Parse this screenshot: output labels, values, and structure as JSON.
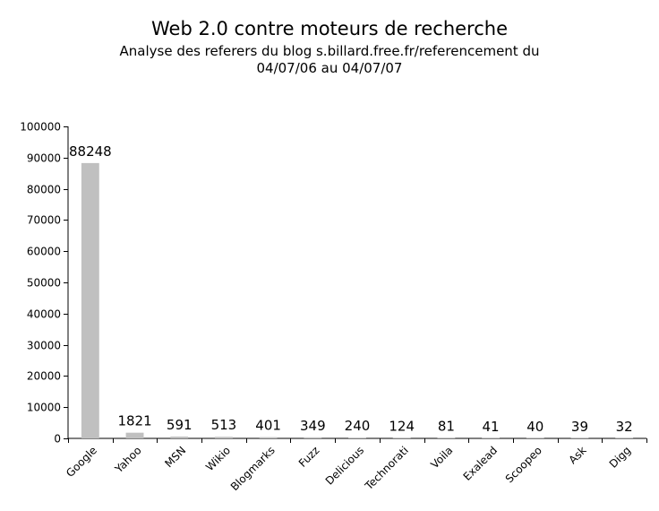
{
  "chart_data": {
    "type": "bar",
    "title": "Web 2.0 contre moteurs de recherche",
    "subtitle_line1": "Analyse des referers du blog s.billard.free.fr/referencement du",
    "subtitle_line2": "04/07/06 au 04/07/07",
    "xlabel": "",
    "ylabel": "",
    "ylim": [
      0,
      100000
    ],
    "yticks": [
      0,
      10000,
      20000,
      30000,
      40000,
      50000,
      60000,
      70000,
      80000,
      90000,
      100000
    ],
    "categories": [
      "Google",
      "Yahoo",
      "MSN",
      "Wikio",
      "Blogmarks",
      "Fuzz",
      "Delicious",
      "Technorati",
      "Voila",
      "Exalead",
      "Scoopeo",
      "Ask",
      "Digg"
    ],
    "values": [
      88248,
      1821,
      591,
      513,
      401,
      349,
      240,
      124,
      81,
      41,
      40,
      39,
      32
    ],
    "bar_color": "#c0c0c0",
    "grid": false,
    "legend": "none"
  }
}
